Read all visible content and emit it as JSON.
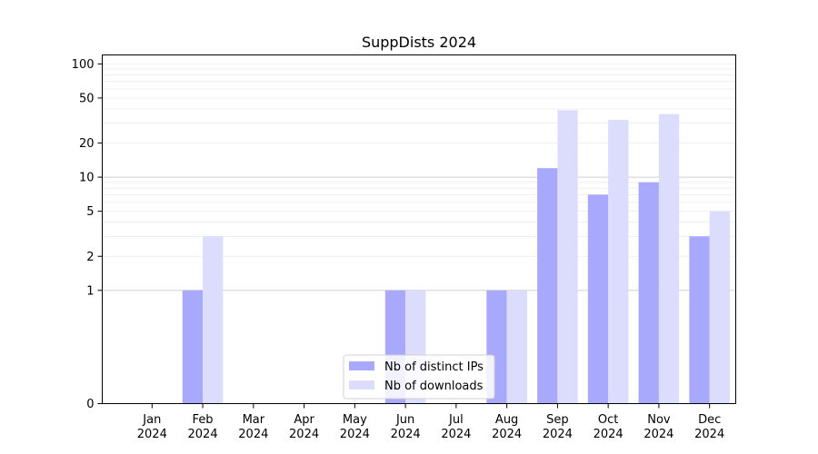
{
  "chart_data": {
    "type": "bar",
    "title": "SuppDists 2024",
    "xlabel": "",
    "ylabel": "",
    "yscale": "symlog",
    "ylim": [
      0,
      120
    ],
    "yticks": [
      0,
      1,
      2,
      5,
      10,
      20,
      50,
      100
    ],
    "grid": true,
    "legend_position": "bottom-center",
    "categories": [
      [
        "Jan",
        "2024"
      ],
      [
        "Feb",
        "2024"
      ],
      [
        "Mar",
        "2024"
      ],
      [
        "Apr",
        "2024"
      ],
      [
        "May",
        "2024"
      ],
      [
        "Jun",
        "2024"
      ],
      [
        "Jul",
        "2024"
      ],
      [
        "Aug",
        "2024"
      ],
      [
        "Sep",
        "2024"
      ],
      [
        "Oct",
        "2024"
      ],
      [
        "Nov",
        "2024"
      ],
      [
        "Dec",
        "2024"
      ]
    ],
    "series": [
      {
        "name": "Nb of distinct IPs",
        "color": "#a8a8fc",
        "values": [
          0,
          1,
          0,
          0,
          0,
          1,
          0,
          1,
          12,
          7,
          9,
          3
        ]
      },
      {
        "name": "Nb of downloads",
        "color": "#dcdcfc",
        "values": [
          0,
          3,
          0,
          0,
          0,
          1,
          0,
          1,
          39,
          32,
          36,
          5
        ]
      }
    ]
  }
}
